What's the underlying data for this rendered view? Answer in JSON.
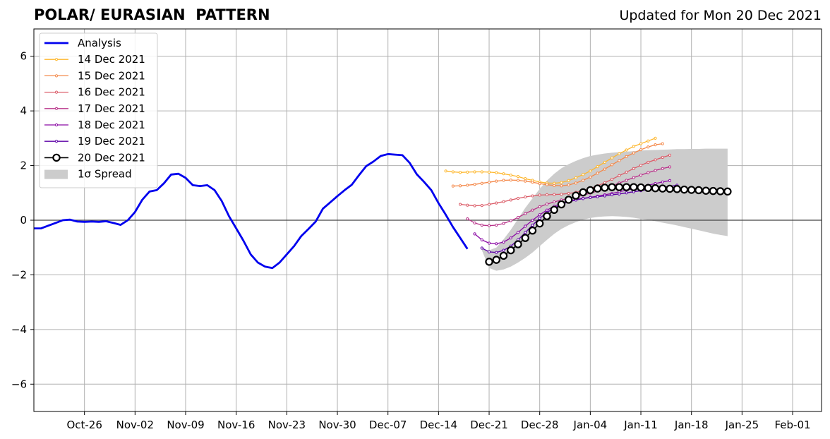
{
  "title_left": "POLAR/ EURASIAN  PATTERN",
  "title_right": "Updated for Mon 20 Dec 2021",
  "chart_data": {
    "type": "line",
    "title": "POLAR/ EURASIAN  PATTERN",
    "subtitle": "Updated for Mon 20 Dec 2021",
    "xlabel": "",
    "ylabel": "",
    "xlim": [
      "2021-10-19",
      "2022-02-05"
    ],
    "ylim": [
      -7,
      7
    ],
    "x_ticks": [
      "Oct-26",
      "Nov-02",
      "Nov-09",
      "Nov-16",
      "Nov-23",
      "Nov-30",
      "Dec-07",
      "Dec-14",
      "Dec-21",
      "Dec-28",
      "Jan-04",
      "Jan-11",
      "Jan-18",
      "Jan-25",
      "Feb-01"
    ],
    "x_tick_dates": [
      "2021-10-26",
      "2021-11-02",
      "2021-11-09",
      "2021-11-16",
      "2021-11-23",
      "2021-11-30",
      "2021-12-07",
      "2021-12-14",
      "2021-12-21",
      "2021-12-28",
      "2022-01-04",
      "2022-01-11",
      "2022-01-18",
      "2022-01-25",
      "2022-02-01"
    ],
    "y_ticks": [
      "−6",
      "−4",
      "−2",
      "0",
      "2",
      "4",
      "6"
    ],
    "y_tick_values": [
      -6,
      -4,
      -2,
      0,
      2,
      4,
      6
    ],
    "grid": true,
    "zero_line": true,
    "legend_position": "top-left",
    "legend": [
      "Analysis",
      "14 Dec 2021",
      "15 Dec 2021",
      "16 Dec 2021",
      "17 Dec 2021",
      "18 Dec 2021",
      "19 Dec 2021",
      "20 Dec 2021",
      "1σ Spread"
    ],
    "analysis": {
      "name": "Analysis",
      "color": "#0000ee",
      "start": "2021-10-19",
      "values": [
        -0.3,
        -0.3,
        -0.2,
        -0.1,
        0.0,
        0.02,
        -0.05,
        -0.06,
        -0.05,
        -0.06,
        -0.04,
        -0.1,
        -0.17,
        0.0,
        0.3,
        0.75,
        1.05,
        1.1,
        1.35,
        1.67,
        1.7,
        1.55,
        1.28,
        1.25,
        1.28,
        1.1,
        0.7,
        0.15,
        -0.3,
        -0.75,
        -1.25,
        -1.55,
        -1.7,
        -1.75,
        -1.55,
        -1.25,
        -0.95,
        -0.58,
        -0.32,
        -0.05,
        0.42,
        0.65,
        0.88,
        1.1,
        1.3,
        1.65,
        1.98,
        2.15,
        2.35,
        2.42,
        2.4,
        2.38,
        2.1,
        1.68,
        1.4,
        1.1,
        0.62,
        0.2,
        -0.25,
        -0.65,
        -1.05
      ]
    },
    "forecasts": [
      {
        "name": "14 Dec 2021",
        "color": "#feb72d",
        "start": "2021-12-15",
        "values": [
          1.8,
          1.77,
          1.75,
          1.76,
          1.77,
          1.77,
          1.76,
          1.74,
          1.7,
          1.65,
          1.6,
          1.52,
          1.46,
          1.4,
          1.36,
          1.35,
          1.38,
          1.45,
          1.55,
          1.67,
          1.8,
          1.96,
          2.12,
          2.28,
          2.43,
          2.57,
          2.7,
          2.8,
          2.9,
          3.0
        ]
      },
      {
        "name": "15 Dec 2021",
        "color": "#f48849",
        "start": "2021-12-16",
        "values": [
          1.25,
          1.26,
          1.28,
          1.31,
          1.35,
          1.39,
          1.43,
          1.46,
          1.47,
          1.46,
          1.43,
          1.39,
          1.34,
          1.3,
          1.27,
          1.26,
          1.29,
          1.36,
          1.46,
          1.58,
          1.72,
          1.87,
          2.03,
          2.18,
          2.33,
          2.46,
          2.58,
          2.68,
          2.76,
          2.8
        ]
      },
      {
        "name": "16 Dec 2021",
        "color": "#db5c68",
        "start": "2021-12-17",
        "values": [
          0.58,
          0.55,
          0.53,
          0.54,
          0.58,
          0.63,
          0.68,
          0.74,
          0.8,
          0.85,
          0.89,
          0.92,
          0.93,
          0.94,
          0.95,
          0.98,
          1.02,
          1.08,
          1.16,
          1.26,
          1.37,
          1.5,
          1.63,
          1.76,
          1.89,
          2.01,
          2.12,
          2.21,
          2.3,
          2.38
        ]
      },
      {
        "name": "17 Dec 2021",
        "color": "#b83289",
        "start": "2021-12-18",
        "values": [
          0.05,
          -0.1,
          -0.18,
          -0.2,
          -0.18,
          -0.12,
          -0.02,
          0.1,
          0.24,
          0.37,
          0.49,
          0.59,
          0.67,
          0.74,
          0.8,
          0.86,
          0.92,
          0.99,
          1.07,
          1.16,
          1.26,
          1.36,
          1.46,
          1.56,
          1.65,
          1.74,
          1.82,
          1.89,
          1.95
        ]
      },
      {
        "name": "18 Dec 2021",
        "color": "#8b0aa5",
        "start": "2021-12-19",
        "values": [
          -0.5,
          -0.72,
          -0.84,
          -0.86,
          -0.8,
          -0.65,
          -0.45,
          -0.22,
          0.0,
          0.2,
          0.37,
          0.51,
          0.62,
          0.7,
          0.76,
          0.8,
          0.84,
          0.88,
          0.93,
          0.98,
          1.04,
          1.1,
          1.16,
          1.22,
          1.28,
          1.34,
          1.4,
          1.45
        ]
      },
      {
        "name": "19 Dec 2021",
        "color": "#5c01a6",
        "start": "2021-12-20",
        "values": [
          -1.02,
          -1.16,
          -1.18,
          -1.1,
          -0.95,
          -0.72,
          -0.45,
          -0.18,
          0.07,
          0.28,
          0.45,
          0.58,
          0.67,
          0.74,
          0.79,
          0.83,
          0.86,
          0.89,
          0.93,
          0.96,
          1.0,
          1.04,
          1.08,
          1.12,
          1.16,
          1.2,
          1.24,
          1.28
        ]
      },
      {
        "name": "20 Dec 2021",
        "color": "#000000",
        "start": "2021-12-21",
        "values": [
          -1.52,
          -1.45,
          -1.3,
          -1.1,
          -0.88,
          -0.65,
          -0.38,
          -0.12,
          0.15,
          0.38,
          0.58,
          0.75,
          0.9,
          1.02,
          1.1,
          1.16,
          1.19,
          1.21,
          1.21,
          1.21,
          1.21,
          1.2,
          1.18,
          1.17,
          1.16,
          1.15,
          1.14,
          1.12,
          1.11,
          1.1,
          1.08,
          1.07,
          1.06,
          1.05
        ]
      }
    ],
    "spread": {
      "name": "1σ Spread",
      "color": "#cccccc",
      "start": "2021-12-20",
      "upper": [
        -1.05,
        -1.1,
        -1.0,
        -0.7,
        -0.35,
        0.05,
        0.45,
        0.8,
        1.15,
        1.45,
        1.7,
        1.9,
        2.05,
        2.17,
        2.27,
        2.35,
        2.4,
        2.44,
        2.47,
        2.49,
        2.51,
        2.53,
        2.55,
        2.56,
        2.57,
        2.58,
        2.59,
        2.6,
        2.6,
        2.61,
        2.61,
        2.62,
        2.62,
        2.62,
        2.62
      ],
      "lower": [
        -1.1,
        -1.75,
        -1.85,
        -1.8,
        -1.7,
        -1.55,
        -1.38,
        -1.18,
        -0.95,
        -0.72,
        -0.5,
        -0.32,
        -0.18,
        -0.07,
        0.02,
        0.08,
        0.12,
        0.14,
        0.15,
        0.14,
        0.12,
        0.09,
        0.05,
        0.01,
        -0.04,
        -0.09,
        -0.14,
        -0.19,
        -0.25,
        -0.31,
        -0.37,
        -0.43,
        -0.49,
        -0.54,
        -0.58
      ]
    }
  }
}
